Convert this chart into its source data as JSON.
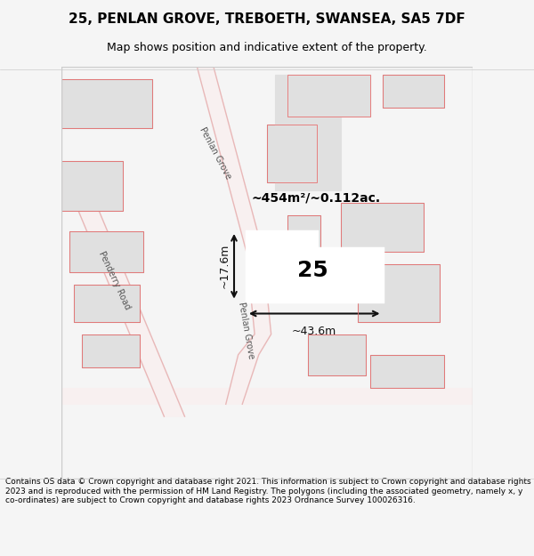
{
  "title_line1": "25, PENLAN GROVE, TREBOETH, SWANSEA, SA5 7DF",
  "title_line2": "Map shows position and indicative extent of the property.",
  "footer_text": "Contains OS data © Crown copyright and database right 2021. This information is subject to Crown copyright and database rights 2023 and is reproduced with the permission of HM Land Registry. The polygons (including the associated geometry, namely x, y co-ordinates) are subject to Crown copyright and database rights 2023 Ordnance Survey 100026316.",
  "area_label": "~454m²/~0.112ac.",
  "width_label": "~43.6m",
  "height_label": "~17.6m",
  "plot_number": "25",
  "bg_color": "#f5f5f5",
  "map_bg": "#ffffff",
  "road_color": "#f0c0c0",
  "building_fill": "#e0e0e0",
  "building_stroke": "#c0b0b0",
  "plot_fill": "#ffffff",
  "plot_stroke": "#cc0000",
  "road_line_color": "#e8a0a0",
  "dim_line_color": "#111111"
}
